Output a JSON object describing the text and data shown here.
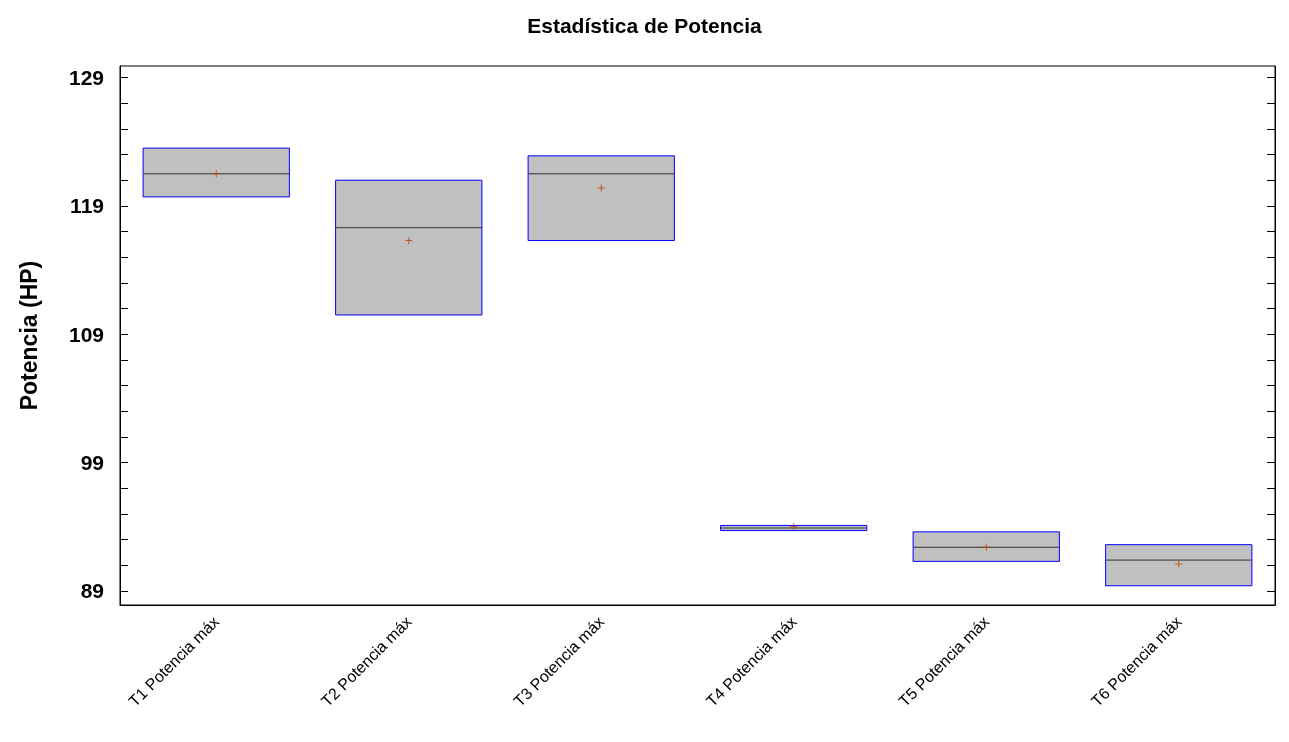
{
  "chart_data": {
    "type": "box",
    "title": "Estadística de Potencia",
    "ylabel": "Potencia (HP)",
    "categories": [
      "T1 Potencia máx",
      "T2 Potencia máx",
      "T3 Potencia máx",
      "T4 Potencia máx",
      "T5 Potencia máx",
      "T6 Potencia máx"
    ],
    "boxes": [
      {
        "low": 119.7,
        "q1": 119.7,
        "median": 121.5,
        "q3": 123.5,
        "high": 123.5,
        "mean": 121.5
      },
      {
        "low": 110.5,
        "q1": 110.5,
        "median": 117.3,
        "q3": 121.0,
        "high": 121.0,
        "mean": 116.3
      },
      {
        "low": 116.3,
        "q1": 116.3,
        "median": 121.5,
        "q3": 122.9,
        "high": 122.9,
        "mean": 120.4
      },
      {
        "low": 93.7,
        "q1": 93.7,
        "median": 93.9,
        "q3": 94.1,
        "high": 94.1,
        "mean": 94.0
      },
      {
        "low": 91.3,
        "q1": 91.3,
        "median": 92.4,
        "q3": 93.6,
        "high": 93.6,
        "mean": 92.4
      },
      {
        "low": 89.4,
        "q1": 89.4,
        "median": 91.4,
        "q3": 92.6,
        "high": 92.6,
        "mean": 91.1
      }
    ],
    "ylim": [
      87.9,
      129.9
    ],
    "yticks": [
      89,
      {
        "value": 91,
        "label": null
      },
      {
        "value": 93,
        "label": null
      },
      {
        "value": 95,
        "label": null
      },
      {
        "value": 97,
        "label": null
      },
      99,
      {
        "value": 101,
        "label": null
      },
      {
        "value": 103,
        "label": null
      },
      {
        "value": 105,
        "label": null
      },
      {
        "value": 107,
        "label": null
      },
      109,
      {
        "value": 111,
        "label": null
      },
      {
        "value": 113,
        "label": null
      },
      {
        "value": 115,
        "label": null
      },
      {
        "value": 117,
        "label": null
      },
      119,
      {
        "value": 121,
        "label": null
      },
      {
        "value": 123,
        "label": null
      },
      {
        "value": 125,
        "label": null
      },
      {
        "value": 127,
        "label": null
      },
      129
    ],
    "grid": false,
    "marker": "cross"
  }
}
